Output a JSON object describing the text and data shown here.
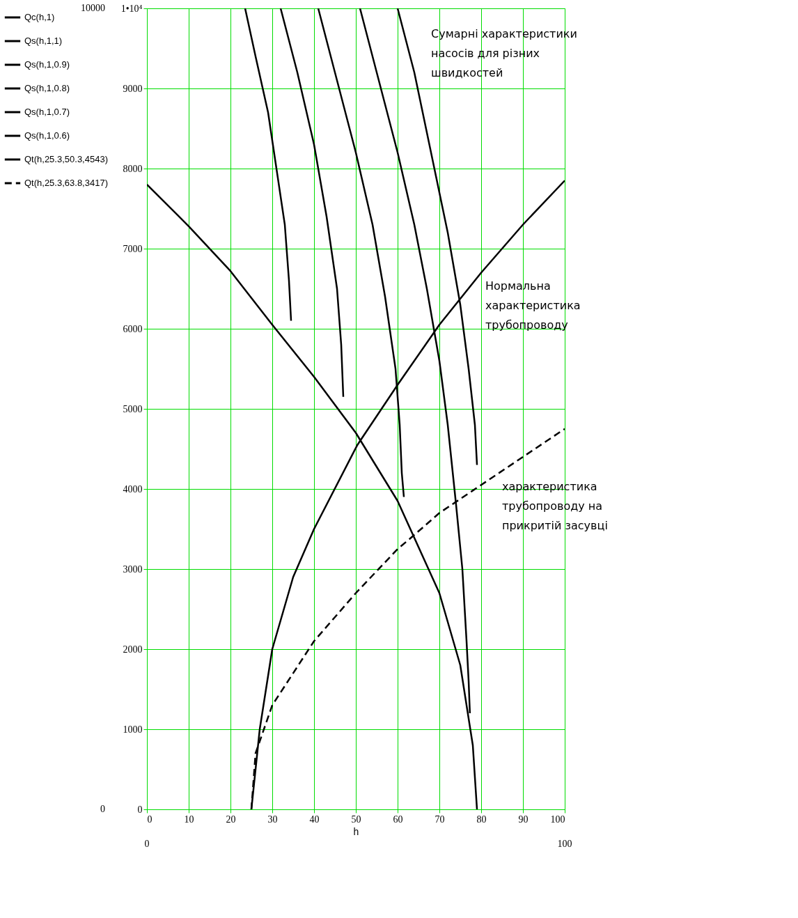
{
  "chart_data": {
    "type": "line",
    "xlabel": "h",
    "xlim": [
      0,
      100
    ],
    "ylim": [
      0,
      10000
    ],
    "xticks": [
      0,
      10,
      20,
      30,
      40,
      50,
      60,
      70,
      80,
      90,
      100
    ],
    "yticks": [
      0,
      1000,
      2000,
      3000,
      4000,
      5000,
      6000,
      7000,
      8000,
      9000,
      {
        "value": 10000,
        "label": "1•10⁴"
      }
    ],
    "grid": true,
    "legend": "left",
    "line_style": "solid",
    "series": [
      {
        "name": "Qc(h,1)",
        "color": "#000000",
        "x": [
          0,
          10,
          20,
          30,
          40,
          50,
          60,
          70,
          75,
          78,
          79
        ],
        "values": [
          7800,
          7280,
          6720,
          6050,
          5400,
          4700,
          3850,
          2700,
          1800,
          800,
          0
        ]
      },
      {
        "name": "Qs(h,1,1)",
        "color": "#000000",
        "x": [
          23.5,
          26,
          29,
          31,
          33,
          34,
          34.5
        ],
        "values": [
          10000,
          9400,
          8700,
          8000,
          7300,
          6600,
          6100
        ]
      },
      {
        "name": "Qs(h,1,0.9)",
        "color": "#000000",
        "x": [
          32,
          36,
          40,
          43,
          45.5,
          46.5,
          47
        ],
        "values": [
          10000,
          9200,
          8300,
          7400,
          6500,
          5800,
          5150
        ]
      },
      {
        "name": "Qs(h,1,0.8)",
        "color": "#000000",
        "x": [
          41,
          45,
          50,
          54,
          57,
          59.5,
          60.5,
          61,
          61.5
        ],
        "values": [
          10000,
          9200,
          8200,
          7300,
          6400,
          5500,
          4800,
          4200,
          3900
        ]
      },
      {
        "name": "Qs(h,1,0.7)",
        "color": "#000000",
        "x": [
          51,
          55,
          60,
          64,
          67,
          70,
          72,
          74,
          75.5,
          76.5,
          77,
          77.3
        ],
        "values": [
          10000,
          9200,
          8200,
          7300,
          6500,
          5600,
          4800,
          3800,
          3000,
          2100,
          1600,
          1200
        ]
      },
      {
        "name": "Qs(h,1,0.6)",
        "color": "#000000",
        "x": [
          60,
          64,
          68,
          72,
          75,
          77,
          78.5,
          79
        ],
        "values": [
          10000,
          9200,
          8200,
          7200,
          6300,
          5500,
          4800,
          4300
        ]
      },
      {
        "name": "Qt(h,25.3,50.3,4543)",
        "color": "#000000",
        "x": [
          25,
          26,
          27,
          30,
          35,
          40,
          50.3,
          60,
          70,
          80,
          90,
          100
        ],
        "values": [
          0,
          500,
          1000,
          2000,
          2900,
          3500,
          4543,
          5300,
          6050,
          6700,
          7300,
          7850
        ]
      },
      {
        "name": "Qt(h,25.3,63.8,3417)",
        "color": "#000000",
        "line_style": "dashed",
        "x": [
          25,
          26,
          30,
          40,
          50,
          60,
          63.8,
          70,
          80,
          90,
          100
        ],
        "values": [
          0,
          700,
          1300,
          2100,
          2700,
          3250,
          3417,
          3700,
          4050,
          4400,
          4750
        ]
      }
    ],
    "annotations": [
      "Сумарні характеристики\nнасосів для різних\nшвидкостей",
      "Нормальна\nхарактеристика\nтрубопроводу",
      "характеристика\nтрубопроводу на\nприкритій засувці",
      "10000",
      "0",
      "0",
      "100"
    ]
  }
}
